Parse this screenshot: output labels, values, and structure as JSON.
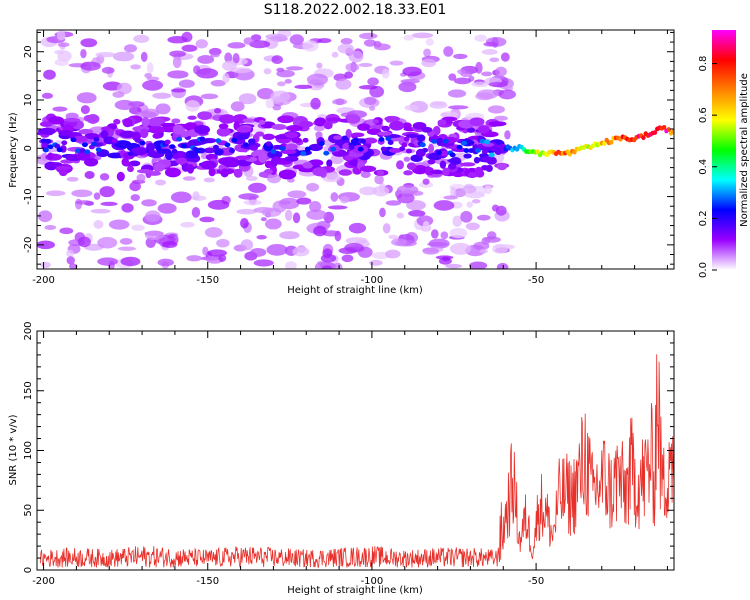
{
  "title": "S118.2022.002.18.33.E01",
  "chart_data": [
    {
      "type": "heatmap",
      "xlabel": "Height of straight line (km)",
      "ylabel": "Frequency (Hz)",
      "xlim": [
        -202,
        -8
      ],
      "ylim": [
        -25,
        24.5
      ],
      "xticks": [
        -200,
        -150,
        -100,
        -50
      ],
      "yticks": [
        -20,
        -10,
        0,
        10,
        20
      ],
      "colorbar": {
        "label": "Normalized spectral amplitude",
        "range": [
          0.0,
          0.93
        ],
        "ticks": [
          0.0,
          0.2,
          0.4,
          0.6,
          0.8
        ],
        "colormap": [
          "#ffffff",
          "#9900ff",
          "#0000ff",
          "#00ffff",
          "#00ff00",
          "#ffff00",
          "#ff8000",
          "#ff0000",
          "#ff00ff"
        ]
      },
      "ridge": {
        "x": [
          -200,
          -175,
          -150,
          -125,
          -100,
          -75,
          -60,
          -55,
          -50,
          -45,
          -40,
          -35,
          -30,
          -25,
          -20,
          -15,
          -12,
          -10,
          -8
        ],
        "freq_hz": [
          1,
          0,
          1,
          0,
          1,
          0,
          0,
          0,
          -1,
          -1,
          -1,
          0,
          1,
          2,
          2,
          3,
          4,
          4,
          3
        ],
        "amplitude": [
          0.2,
          0.2,
          0.2,
          0.2,
          0.2,
          0.2,
          0.25,
          0.35,
          0.55,
          0.7,
          0.72,
          0.6,
          0.62,
          0.78,
          0.8,
          0.85,
          0.88,
          0.88,
          0.6
        ]
      },
      "background_noise_extent_x": [
        -200,
        -60
      ]
    },
    {
      "type": "line",
      "xlabel": "Height of straight line (km)",
      "ylabel": "SNR (10 * v/v)",
      "xlim": [
        -202,
        -8
      ],
      "ylim": [
        0,
        200
      ],
      "xticks": [
        -200,
        -150,
        -100,
        -50
      ],
      "yticks": [
        0,
        50,
        100,
        150,
        200
      ],
      "series": [
        {
          "color": "#e8302a",
          "x": [
            -200,
            -190,
            -180,
            -170,
            -160,
            -150,
            -140,
            -130,
            -120,
            -110,
            -100,
            -90,
            -80,
            -70,
            -62,
            -59,
            -57,
            -55,
            -53,
            -51,
            -49,
            -47,
            -45,
            -43,
            -41,
            -39,
            -37,
            -35,
            -33,
            -31,
            -29,
            -27,
            -25,
            -23,
            -21,
            -19,
            -17,
            -15,
            -14,
            -13,
            -12,
            -11,
            -10,
            -9,
            -8
          ],
          "y": [
            9,
            10,
            9,
            11,
            10,
            9,
            11,
            10,
            9,
            10,
            11,
            9,
            10,
            10,
            9,
            60,
            95,
            30,
            55,
            20,
            70,
            60,
            35,
            75,
            80,
            75,
            95,
            120,
            80,
            90,
            95,
            80,
            100,
            80,
            105,
            90,
            95,
            115,
            95,
            200,
            105,
            85,
            110,
            140,
            75
          ]
        }
      ]
    }
  ]
}
